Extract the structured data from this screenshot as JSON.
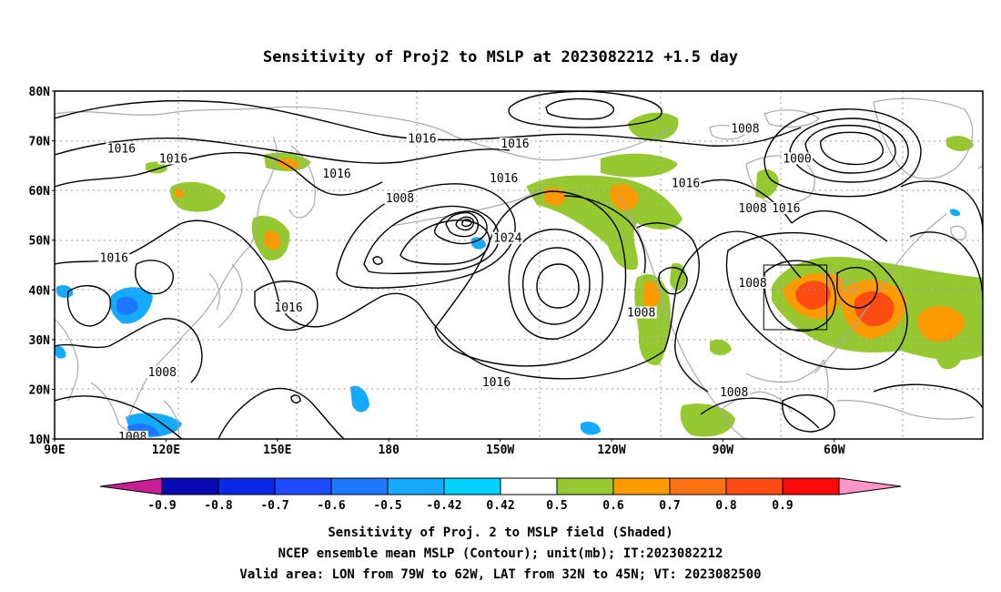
{
  "title": "Sensitivity of Proj2 to MSLP at 2023082212 +1.5 day",
  "map": {
    "lat_labels": [
      "80N",
      "70N",
      "60N",
      "50N",
      "40N",
      "30N",
      "20N",
      "10N"
    ],
    "lon_labels": [
      "90E",
      "120E",
      "150E",
      "180",
      "150W",
      "120W",
      "90W",
      "60W"
    ],
    "contour_labels": [
      {
        "text": "1016",
        "lon": 108,
        "lat": 68
      },
      {
        "text": "1016",
        "lon": 122,
        "lat": 66
      },
      {
        "text": "1016",
        "lon": 166,
        "lat": 63
      },
      {
        "text": "1016",
        "lon": -171,
        "lat": 70
      },
      {
        "text": "1016",
        "lon": -146,
        "lat": 69
      },
      {
        "text": "1016",
        "lon": -149,
        "lat": 62
      },
      {
        "text": "1008",
        "lon": -177,
        "lat": 58
      },
      {
        "text": "1024",
        "lon": -148,
        "lat": 50
      },
      {
        "text": "1016",
        "lon": 106,
        "lat": 46
      },
      {
        "text": "1016",
        "lon": 153,
        "lat": 36
      },
      {
        "text": "1016",
        "lon": -151,
        "lat": 21
      },
      {
        "text": "1008",
        "lon": 119,
        "lat": 23
      },
      {
        "text": "1008",
        "lon": 111,
        "lat": 10
      },
      {
        "text": "1008",
        "lon": -112,
        "lat": 35
      },
      {
        "text": "1008",
        "lon": -82,
        "lat": 41
      },
      {
        "text": "1008",
        "lon": -87,
        "lat": 19
      },
      {
        "text": "1016",
        "lon": -100,
        "lat": 61
      },
      {
        "text": "1008",
        "lon": -84,
        "lat": 72
      },
      {
        "text": "1000",
        "lon": -70,
        "lat": 66
      },
      {
        "text": "1008",
        "lon": -82,
        "lat": 56
      },
      {
        "text": "1016",
        "lon": -73,
        "lat": 56
      }
    ],
    "valid_area": {
      "lon": [
        -79,
        -62
      ],
      "lat": [
        32,
        45
      ]
    }
  },
  "colorbar": {
    "labels": [
      "-0.9",
      "-0.8",
      "-0.7",
      "-0.6",
      "-0.5",
      "-0.42",
      "0.42",
      "0.5",
      "0.6",
      "0.7",
      "0.8",
      "0.9"
    ],
    "colors": [
      "#c81e96",
      "#0a0ab4",
      "#0a28e6",
      "#1e4bff",
      "#1e78ff",
      "#14aaff",
      "#00d2ff",
      "#ffffff",
      "#96c832",
      "#ff9b00",
      "#ff7314",
      "#ff4b14",
      "#ff0a0a",
      "#ff96c8"
    ]
  },
  "caption": {
    "line1": "Sensitivity of Proj. 2 to MSLP field (Shaded)",
    "line2": "NCEP ensemble mean MSLP (Contour); unit(mb); IT:2023082212",
    "line3": "Valid area: LON from 79W to 62W, LAT from 32N to 45N; VT: 2023082500"
  },
  "colors": {
    "coast": "#a9a9a9",
    "grid": "#999999",
    "contour": "#000000",
    "positive_low": "#96c832",
    "positive_mid": "#ff9b00",
    "positive_high": "#ff4b14",
    "negative_low": "#14aaff",
    "negative_mid": "#1e78ff"
  }
}
